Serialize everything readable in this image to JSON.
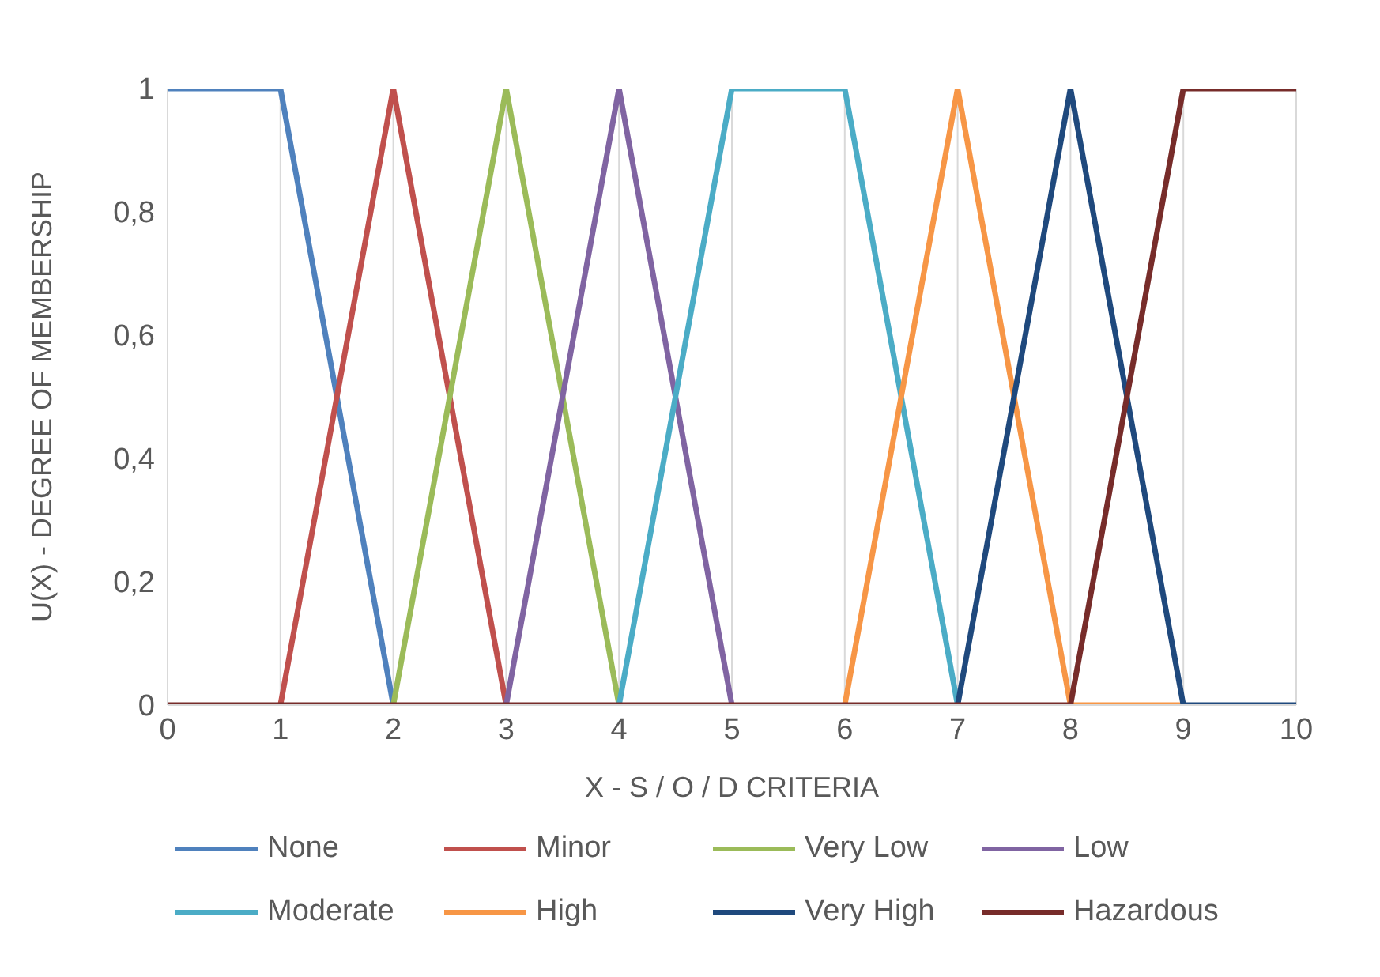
{
  "chart_data": {
    "type": "line",
    "xlabel": "X - S / O / D CRITERIA",
    "ylabel": "U(X) - DEGREE OF MEMBERSHIP",
    "x": [
      0,
      1,
      2,
      3,
      4,
      5,
      6,
      7,
      8,
      9,
      10
    ],
    "series": [
      {
        "name": "None",
        "color": "#4f81bd",
        "values": [
          1,
          1,
          0,
          null,
          null,
          null,
          null,
          null,
          null,
          null,
          null
        ]
      },
      {
        "name": "Minor",
        "color": "#c0504d",
        "values": [
          null,
          0,
          1,
          0,
          null,
          null,
          null,
          null,
          null,
          null,
          null
        ]
      },
      {
        "name": "Very Low",
        "color": "#9bbb59",
        "values": [
          null,
          null,
          0,
          1,
          0,
          null,
          null,
          null,
          null,
          null,
          null
        ]
      },
      {
        "name": "Low",
        "color": "#8064a2",
        "values": [
          null,
          null,
          null,
          0,
          1,
          0,
          null,
          null,
          null,
          null,
          null
        ]
      },
      {
        "name": "Moderate",
        "color": "#4bacc6",
        "values": [
          null,
          null,
          null,
          null,
          0,
          1,
          1,
          0,
          null,
          null,
          null
        ]
      },
      {
        "name": "High",
        "color": "#f79646",
        "values": [
          null,
          null,
          null,
          null,
          null,
          null,
          0,
          1,
          0,
          0,
          null
        ]
      },
      {
        "name": "Very High",
        "color": "#1f497d",
        "values": [
          null,
          null,
          null,
          null,
          null,
          null,
          null,
          0,
          1,
          0,
          0
        ]
      },
      {
        "name": "Hazardous",
        "color": "#772c2a",
        "values": [
          0,
          0,
          0,
          0,
          0,
          0,
          0,
          0,
          0,
          1,
          1
        ]
      }
    ],
    "xlim": [
      0,
      10
    ],
    "xticks": [
      0,
      1,
      2,
      3,
      4,
      5,
      6,
      7,
      8,
      9,
      10
    ],
    "ylim": [
      0,
      1
    ],
    "yticks": [
      0,
      {
        "value": 0.2,
        "label": "0,2"
      },
      {
        "value": 0.4,
        "label": "0,4"
      },
      {
        "value": 0.6,
        "label": "0,6"
      },
      {
        "value": 0.8,
        "label": "0,8"
      },
      1
    ],
    "grid": "x",
    "legend": "bottom",
    "marker": "none",
    "line_style": "solid"
  }
}
